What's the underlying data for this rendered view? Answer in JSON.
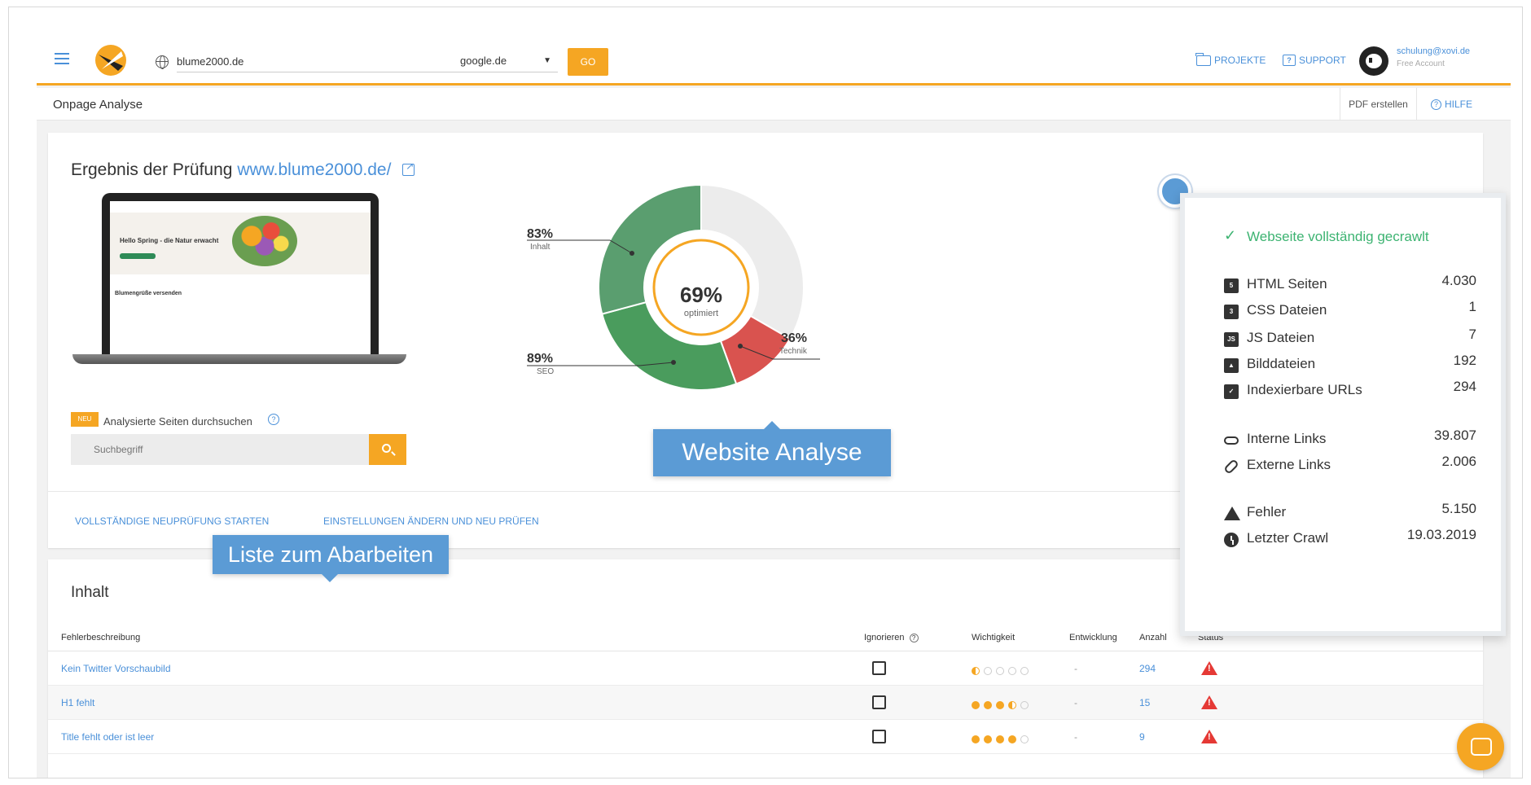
{
  "topbar": {
    "domain_value": "blume2000.de",
    "engine_value": "google.de",
    "go_label": "GO",
    "projects_label": "PROJEKTE",
    "support_label": "SUPPORT",
    "user_email": "schulung@xovi.de",
    "user_plan": "Free Account"
  },
  "subheader": {
    "title": "Onpage Analyse",
    "pdf_label": "PDF erstellen",
    "help_label": "HILFE"
  },
  "result": {
    "title_prefix": "Ergebnis der Prüfung",
    "url": "www.blume2000.de/",
    "new_badge": "NEU",
    "search_label": "Analysierte Seiten durchsuchen",
    "search_placeholder": "Suchbegriff",
    "action_restart": "VOLLSTÄNDIGE NEUPRÜFUNG STARTEN",
    "action_settings": "EINSTELLUNGEN ÄNDERN UND NEU PRÜFEN",
    "laptop_text1": "Hello Spring - die Natur erwacht",
    "laptop_text2": "Blumengrüße versenden"
  },
  "chart_data": {
    "type": "pie",
    "title": "",
    "center_value": "69%",
    "center_label": "optimiert",
    "slices": [
      {
        "label": "Inhalt",
        "pct": "83%",
        "value": 83,
        "color": "#5a9e6f"
      },
      {
        "label": "SEO",
        "pct": "89%",
        "value": 89,
        "color": "#4a9c5d"
      },
      {
        "label": "Technik",
        "pct": "36%",
        "value": 36,
        "color": "#d9534f"
      }
    ]
  },
  "callouts": {
    "website": "Website Analyse",
    "list": "Liste zum Abarbeiten"
  },
  "popup": {
    "status": "Webseite vollständig gecrawlt",
    "stats": [
      {
        "label": "HTML Seiten",
        "value": "4.030",
        "icon": "html5-icon"
      },
      {
        "label": "CSS Dateien",
        "value": "1",
        "icon": "css3-icon"
      },
      {
        "label": "JS Dateien",
        "value": "7",
        "icon": "js-icon"
      },
      {
        "label": "Bilddateien",
        "value": "192",
        "icon": "image-icon"
      },
      {
        "label": "Indexierbare URLs",
        "value": "294",
        "icon": "file-icon"
      },
      {
        "label": "Interne Links",
        "value": "39.807",
        "icon": "link-icon"
      },
      {
        "label": "Externe Links",
        "value": "2.006",
        "icon": "external-link-icon"
      },
      {
        "label": "Fehler",
        "value": "5.150",
        "icon": "warning-icon"
      },
      {
        "label": "Letzter Crawl",
        "value": "19.03.2019",
        "icon": "clock-icon"
      }
    ]
  },
  "content": {
    "title": "Inhalt",
    "headers": {
      "description": "Fehlerbeschreibung",
      "ignore": "Ignorieren",
      "importance": "Wichtigkeit",
      "development": "Entwicklung",
      "count": "Anzahl",
      "status": "Status"
    },
    "rows": [
      {
        "description": "Kein Twitter Vorschaubild",
        "importance": 0.5,
        "development": "-",
        "count": "294"
      },
      {
        "description": "H1 fehlt",
        "importance": 3.5,
        "development": "-",
        "count": "15"
      },
      {
        "description": "Title fehlt oder ist leer",
        "importance": 4,
        "development": "-",
        "count": "9"
      }
    ]
  }
}
